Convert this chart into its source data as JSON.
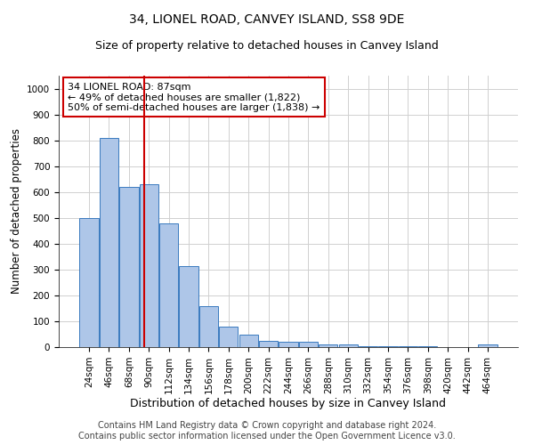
{
  "title1": "34, LIONEL ROAD, CANVEY ISLAND, SS8 9DE",
  "title2": "Size of property relative to detached houses in Canvey Island",
  "xlabel": "Distribution of detached houses by size in Canvey Island",
  "ylabel": "Number of detached properties",
  "footer1": "Contains HM Land Registry data © Crown copyright and database right 2024.",
  "footer2": "Contains public sector information licensed under the Open Government Licence v3.0.",
  "categories": [
    "24sqm",
    "46sqm",
    "68sqm",
    "90sqm",
    "112sqm",
    "134sqm",
    "156sqm",
    "178sqm",
    "200sqm",
    "222sqm",
    "244sqm",
    "266sqm",
    "288sqm",
    "310sqm",
    "332sqm",
    "354sqm",
    "376sqm",
    "398sqm",
    "420sqm",
    "442sqm",
    "464sqm"
  ],
  "values": [
    500,
    810,
    620,
    630,
    480,
    315,
    160,
    80,
    48,
    25,
    22,
    22,
    12,
    10,
    5,
    5,
    4,
    3,
    0,
    0,
    10
  ],
  "bar_color": "#aec6e8",
  "bar_edge_color": "#3a7abf",
  "grid_color": "#d0d0d0",
  "background_color": "#ffffff",
  "annotation_line1": "34 LIONEL ROAD: 87sqm",
  "annotation_line2": "← 49% of detached houses are smaller (1,822)",
  "annotation_line3": "50% of semi-detached houses are larger (1,838) →",
  "red_line_x": 2.77,
  "annotation_box_color": "#ffffff",
  "annotation_box_edge_color": "#cc0000",
  "ylim": [
    0,
    1050
  ],
  "title1_fontsize": 10,
  "title2_fontsize": 9,
  "xlabel_fontsize": 9,
  "ylabel_fontsize": 8.5,
  "annotation_fontsize": 8,
  "footer_fontsize": 7,
  "tick_fontsize": 7.5
}
